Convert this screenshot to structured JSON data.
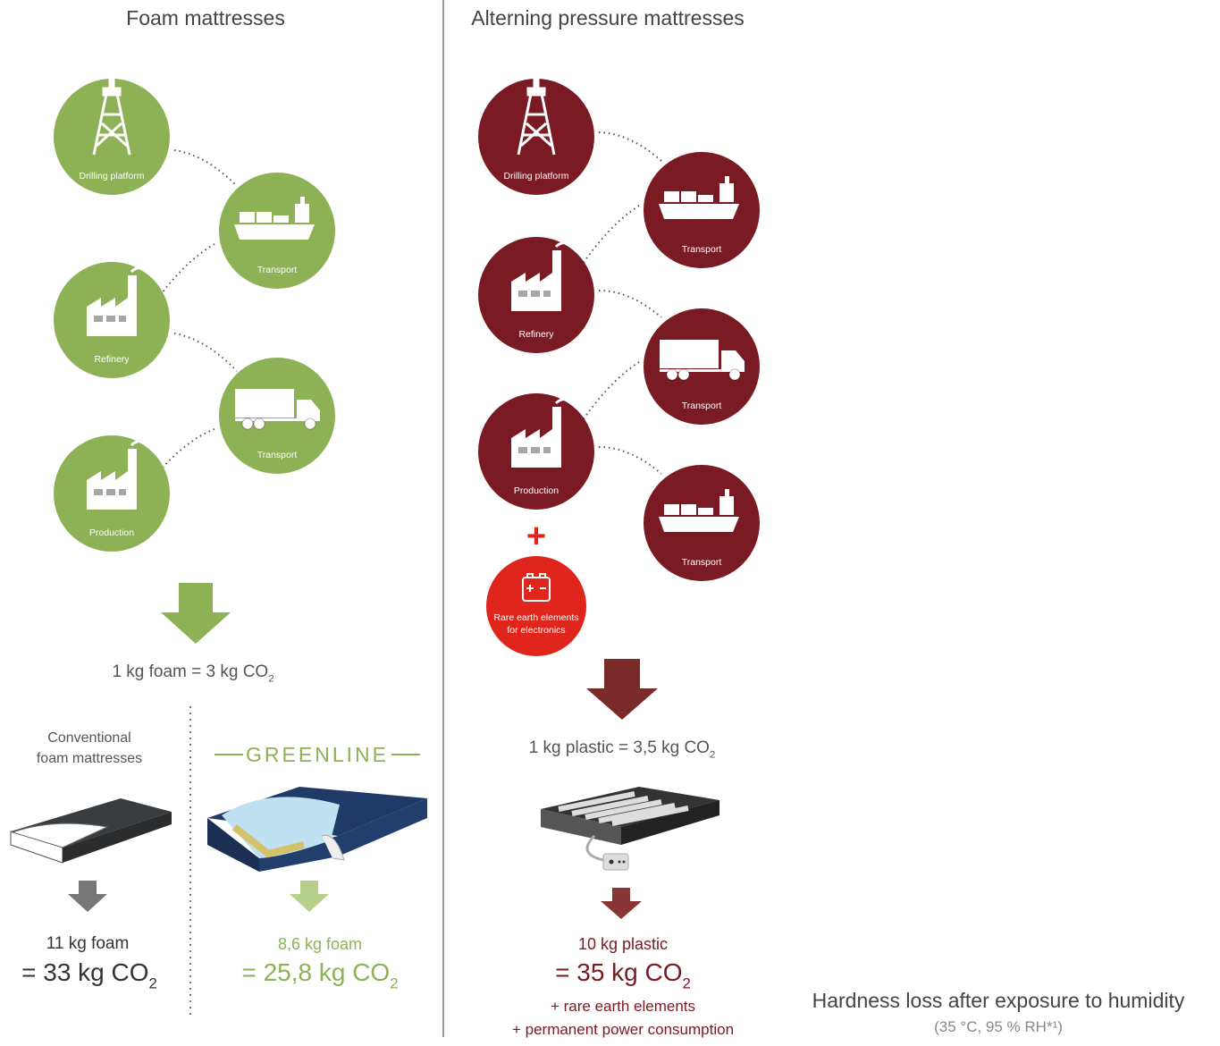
{
  "left": {
    "title": "Foam mattresses",
    "nodes": [
      "Drilling platform",
      "Transport",
      "Refinery",
      "Transport",
      "Production"
    ],
    "equation": {
      "text": "1 kg foam = 3 kg CO",
      "sub": "2"
    },
    "conventional": {
      "label": [
        "Conventional",
        "foam mattresses"
      ],
      "amount": "11 kg foam",
      "result": {
        "text": "= 33 kg CO",
        "sub": "2"
      }
    },
    "greenline": {
      "label": "GREENLINE",
      "amount": "8,6 kg foam",
      "result": {
        "text": "= 25,8 kg CO",
        "sub": "2"
      }
    }
  },
  "right": {
    "title": "Alterning pressure mattresses",
    "nodes": [
      "Drilling platform",
      "Transport",
      "Refinery",
      "Transport",
      "Production",
      "Transport"
    ],
    "extra": [
      "Rare earth elements",
      "for electronics"
    ],
    "equation": {
      "text": "1 kg plastic = 3,5 kg CO",
      "sub": "2"
    },
    "amount": "10 kg plastic",
    "result": {
      "text": "= 35 kg CO",
      "sub": "2"
    },
    "notes": [
      "+ rare earth elements",
      "+ permanent power consumption"
    ]
  },
  "footer": {
    "title": "Hardness loss after exposure to humidity",
    "subtitle": "(35 °C, 95 % RH*¹)"
  }
}
